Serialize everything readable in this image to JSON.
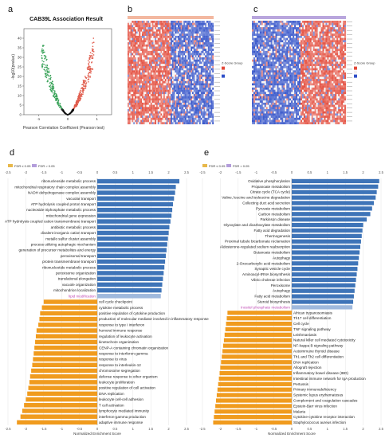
{
  "panel_labels": {
    "a": "a",
    "b": "b",
    "c": "c",
    "d": "d",
    "e": "e"
  },
  "volcano": {
    "title": "CAB39L Association Result",
    "xlabel": "Pearson Correlation Coefficient (Pearson test)",
    "ylabel": "-log10(pvalue)",
    "colors": {
      "positive": "#e05a4a",
      "negative": "#3aa35a",
      "neutral": "#111111"
    }
  },
  "heatmap_b": {
    "legend_title": "Z-Score Group",
    "colors": {
      "high": "#e34a3a",
      "low": "#3050c8",
      "mid": "#f4f0f0"
    }
  },
  "heatmap_c": {
    "legend_title": "Z-Score Group",
    "colors": {
      "high": "#e34a3a",
      "low": "#3050c8",
      "mid": "#f4f0f0"
    }
  },
  "gsea_d": {
    "legend": [
      {
        "label": "FDR ≤ 0.05",
        "color": "#e8b84a"
      },
      {
        "label": "FDR > 0.05",
        "color": "#b39ddb"
      }
    ],
    "xlabel": "Normalized Enrichment Score",
    "xticks": [
      "-2.5",
      "-2",
      "-1.5",
      "-1",
      "-0.5",
      "0",
      "0.5",
      "1",
      "1.5",
      "2",
      "2.5"
    ],
    "highlight_term": "lipid modification",
    "colors": {
      "positive": "#3e74b8",
      "negative": "#f09b1e",
      "highlight": "#c04ab5"
    }
  },
  "gsea_e": {
    "legend": [
      {
        "label": "FDR ≤ 0.05",
        "color": "#e8b84a"
      },
      {
        "label": "FDR > 0.05",
        "color": "#b39ddb"
      }
    ],
    "xlabel": "Normalized Enrichment Score",
    "xticks": [
      "-2.5",
      "-2",
      "-1.5",
      "-1",
      "-0.5",
      "0",
      "0.5",
      "1",
      "1.5",
      "2",
      "2.5"
    ],
    "highlight_term": "Inositol phosphate metabolism",
    "colors": {
      "positive": "#3e74b8",
      "negative": "#f09b1e",
      "highlight": "#c04ab5"
    }
  },
  "chart_data": [
    {
      "type": "scatter",
      "title": "CAB39L Association Result",
      "xlabel": "Pearson Correlation Coefficient (Pearson test)",
      "ylabel": "-log10(pvalue)",
      "xlim": [
        -1.5,
        1.5
      ],
      "ylim": [
        0,
        45
      ],
      "xticks": [
        "-1",
        "0",
        "1"
      ],
      "yticks": [
        "0",
        "5",
        "10",
        "15",
        "20",
        "25",
        "30",
        "35",
        "40"
      ]
    },
    {
      "type": "bar",
      "orientation": "horizontal",
      "xlabel": "Normalized Enrichment Score",
      "xlim": [
        -2.5,
        2.5
      ],
      "categories": [
        "ribonucleoside metabolic process",
        "mitochondrial respiratory chain complex assembly",
        "NADH dehydrogenase complex assembly",
        "vacuolar transport",
        "ATP hydrolysis coupled proton transport",
        "nucleoside triphosphate metabolic process",
        "mitochondrial gene expression",
        "ATP hydrolysis coupled cation transmembrane transport",
        "antibiotic metabolic process",
        "divalent inorganic cation transport",
        "metallo sulfur cluster assembly",
        "process utilizing autophagic mechanism",
        "generation of precursor metabolites and energy",
        "peroxisomal transport",
        "protein transmembrane transport",
        "ribonucleotide metabolic process",
        "peroxisome organization",
        "translational elongation",
        "vacuole organization",
        "mitochondrion localization",
        "lipid modification",
        "cell cycle checkpoint",
        "cytokine metabolic process",
        "positive regulation of cytokine production",
        "production of molecular mediator involved in inflammatory response",
        "response to type I interferon",
        "humoral immune response",
        "regulation of leukocyte activation",
        "kinetochore organization",
        "CENP-A containing chromatin organization",
        "response to interferon-gamma",
        "response to virus",
        "response to interleukin-12",
        "chromosome segregation",
        "defense response to other organism",
        "leukocyte proliferation",
        "positive regulation of cell activation",
        "DNA replication",
        "leukocyte cell-cell adhesion",
        "T cell activation",
        "lymphocyte mediated immunity",
        "interferon-gamma production",
        "adaptive immune response"
      ],
      "values": [
        2.3,
        2.2,
        2.18,
        2.15,
        2.12,
        2.1,
        2.08,
        2.05,
        2.02,
        2.0,
        1.98,
        1.96,
        1.94,
        1.92,
        1.9,
        1.88,
        1.86,
        1.84,
        1.82,
        1.8,
        1.78,
        -1.5,
        -1.55,
        -1.6,
        -1.62,
        -1.65,
        -1.7,
        -1.72,
        -1.74,
        -1.76,
        -1.78,
        -1.8,
        -1.82,
        -1.85,
        -1.88,
        -1.9,
        -1.93,
        -1.96,
        -2.0,
        -2.05,
        -2.1,
        -2.15,
        -2.25
      ]
    },
    {
      "type": "bar",
      "orientation": "horizontal",
      "xlabel": "Normalized Enrichment Score",
      "xlim": [
        -2.5,
        2.5
      ],
      "categories": [
        "Oxidative phosphorylation",
        "Propanoate metabolism",
        "Citrate cycle (TCA cycle)",
        "Valine, leucine and isoleucine degradation",
        "Collecting duct acid secretion",
        "Pyruvate metabolism",
        "Carbon metabolism",
        "Parkinson disease",
        "Glyoxylate and dicarboxylate metabolism",
        "Fatty acid degradation",
        "Thermogenesis",
        "Proximal tubule bicarbonate reclamation",
        "Aldosterone-regulated sodium reabsorption",
        "Butanoate metabolism",
        "Autophagy",
        "2-Oxocarboxylic acid metabolism",
        "Synaptic vesicle cycle",
        "Aminoacyl-tRNA biosynthesis",
        "Vibrio cholerae infection",
        "Peroxisome",
        "Autophagy",
        "Fatty acid metabolism",
        "Steroid biosynthesis",
        "Inositol phosphate metabolism",
        "African trypanosomiasis",
        "Th17 cell differentiation",
        "Cell cycle",
        "TNF signaling pathway",
        "Leishmaniasis",
        "Natural killer cell mediated cytotoxicity",
        "NF-kappa B signaling pathway",
        "Autoimmune thyroid disease",
        "Th1 and Th2 cell differentiation",
        "DNA replication",
        "Allograft rejection",
        "Inflammatory bowel disease (IBD)",
        "Intestinal immune network for IgA production",
        "Pertussis",
        "Primary immunodeficiency",
        "Systemic lupus erythematosus",
        "Complement and coagulation cascades",
        "Epstein-Barr virus infection",
        "Malaria",
        "Cytokine-cytokine receptor interaction",
        "Staphylococcus aureus infection"
      ],
      "values": [
        2.45,
        2.42,
        2.38,
        2.35,
        2.3,
        2.25,
        2.2,
        2.1,
        2.0,
        1.98,
        1.96,
        1.94,
        1.92,
        1.9,
        1.88,
        1.86,
        1.84,
        1.82,
        1.8,
        1.78,
        1.76,
        1.74,
        1.72,
        1.7,
        -1.8,
        -1.82,
        -1.84,
        -1.86,
        -1.88,
        -1.9,
        -1.92,
        -1.94,
        -1.96,
        -1.98,
        -2.0,
        -2.02,
        -2.04,
        -2.06,
        -2.08,
        -2.1,
        -2.12,
        -2.14,
        -2.16,
        -2.18,
        -2.2
      ]
    }
  ]
}
